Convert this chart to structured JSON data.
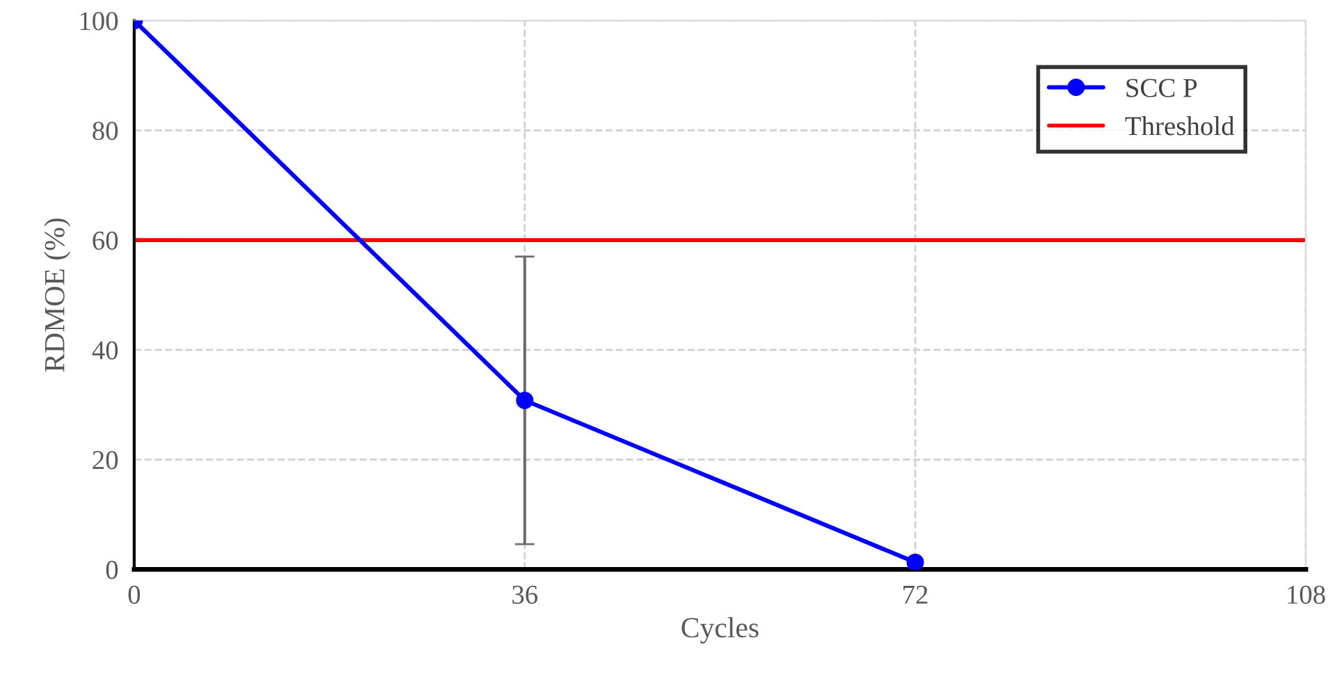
{
  "chart_data": {
    "type": "line",
    "xlabel": "Cycles",
    "ylabel": "RDMOE (%)",
    "x": [
      0,
      36,
      72
    ],
    "series": [
      {
        "name": "SCC P",
        "color": "#0000ff",
        "values": [
          100,
          30.8,
          1.3
        ],
        "errors": [
          null,
          [
            4.6,
            57
          ],
          null
        ]
      }
    ],
    "ref_lines": [
      {
        "axis": "y",
        "value": 60,
        "label": "Threshold",
        "color": "#ff0000"
      }
    ],
    "xlim": [
      0,
      108
    ],
    "xticks": [
      0,
      36,
      72,
      108
    ],
    "ylim": [
      0,
      100
    ],
    "yticks": [
      0,
      20,
      40,
      60,
      80,
      100
    ],
    "grid": true,
    "legend": "top right",
    "marker": "circle",
    "line_style": "solid"
  }
}
